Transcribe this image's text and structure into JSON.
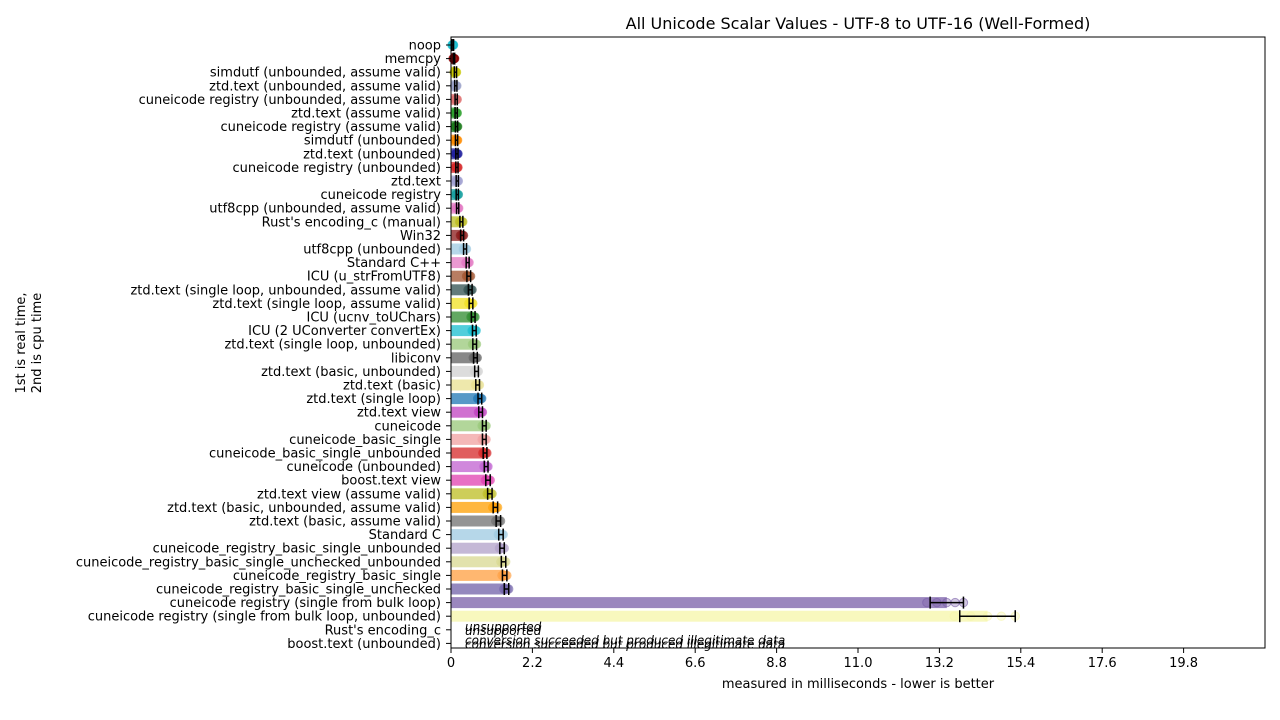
{
  "chart_data": {
    "type": "bar",
    "orientation": "horizontal",
    "title": "All Unicode Scalar Values - UTF-8 to UTF-16 (Well-Formed)",
    "xlabel": "measured in milliseconds - lower is better",
    "ylabel_line1": "1st is real time,",
    "ylabel_line2": "2nd is cpu time",
    "xlim": [
      0,
      22
    ],
    "xticks": [
      "0",
      "2.2",
      "4.4",
      "6.6",
      "8.8",
      "11.0",
      "13.2",
      "15.4",
      "17.6",
      "19.8"
    ],
    "xtick_values": [
      0,
      2.2,
      4.4,
      6.6,
      8.8,
      11.0,
      13.2,
      15.4,
      17.6,
      19.8
    ],
    "grid": false,
    "annotations": {
      "unsupported": "unsupported",
      "illegitimate": "conversion succeeded but produced illegitimate data"
    },
    "categories": [
      {
        "name": "noop",
        "value": 0.05,
        "err": 0.02,
        "color": "#17becf",
        "note": null
      },
      {
        "name": "memcpy",
        "value": 0.08,
        "err": 0.02,
        "color": "#8c0000",
        "note": null
      },
      {
        "name": "simdutf (unbounded, assume valid)",
        "value": 0.12,
        "err": 0.03,
        "color": "#c8c800",
        "note": null
      },
      {
        "name": "ztd.text (unbounded, assume valid)",
        "value": 0.13,
        "err": 0.03,
        "color": "#9aa0c8",
        "note": null
      },
      {
        "name": "cuneicode registry (unbounded, assume valid)",
        "value": 0.14,
        "err": 0.03,
        "color": "#e07070",
        "note": null
      },
      {
        "name": "ztd.text (assume valid)",
        "value": 0.14,
        "err": 0.03,
        "color": "#2ca02c",
        "note": null
      },
      {
        "name": "cuneicode registry (assume valid)",
        "value": 0.15,
        "err": 0.03,
        "color": "#1a7a1a",
        "note": null
      },
      {
        "name": "simdutf (unbounded)",
        "value": 0.15,
        "err": 0.03,
        "color": "#ff8c00",
        "note": null
      },
      {
        "name": "ztd.text (unbounded)",
        "value": 0.16,
        "err": 0.03,
        "color": "#1f1f9f",
        "note": null
      },
      {
        "name": "cuneicode registry (unbounded)",
        "value": 0.16,
        "err": 0.03,
        "color": "#d62728",
        "note": null
      },
      {
        "name": "ztd.text",
        "value": 0.17,
        "err": 0.03,
        "color": "#a0a0d0",
        "note": null
      },
      {
        "name": "cuneicode registry",
        "value": 0.17,
        "err": 0.03,
        "color": "#17a0a0",
        "note": null
      },
      {
        "name": "utf8cpp (unbounded, assume valid)",
        "value": 0.18,
        "err": 0.03,
        "color": "#e377c2",
        "note": null
      },
      {
        "name": "Rust's encoding_c (manual)",
        "value": 0.28,
        "err": 0.04,
        "color": "#bcbd22",
        "note": null
      },
      {
        "name": "Win32",
        "value": 0.3,
        "err": 0.04,
        "color": "#8b1a1a",
        "note": null
      },
      {
        "name": "utf8cpp (unbounded)",
        "value": 0.38,
        "err": 0.04,
        "color": "#9ecae1",
        "note": null
      },
      {
        "name": "Standard C++",
        "value": 0.45,
        "err": 0.04,
        "color": "#e377c2",
        "note": null
      },
      {
        "name": "ICU (u_strFromUTF8)",
        "value": 0.48,
        "err": 0.05,
        "color": "#a0522d",
        "note": null
      },
      {
        "name": "ztd.text (single loop, unbounded, assume valid)",
        "value": 0.52,
        "err": 0.05,
        "color": "#2f4f4f",
        "note": null
      },
      {
        "name": "ztd.text (single loop, assume valid)",
        "value": 0.54,
        "err": 0.05,
        "color": "#f0e020",
        "note": null
      },
      {
        "name": "ICU (ucnv_toUChars)",
        "value": 0.6,
        "err": 0.05,
        "color": "#2e8b2e",
        "note": null
      },
      {
        "name": "ICU (2 UConverter convertEx)",
        "value": 0.63,
        "err": 0.05,
        "color": "#17becf",
        "note": null
      },
      {
        "name": "ztd.text (single loop, unbounded)",
        "value": 0.64,
        "err": 0.05,
        "color": "#98c878",
        "note": null
      },
      {
        "name": "libiconv",
        "value": 0.66,
        "err": 0.05,
        "color": "#606060",
        "note": null
      },
      {
        "name": "ztd.text (basic, unbounded)",
        "value": 0.69,
        "err": 0.05,
        "color": "#d0d0d0",
        "note": null
      },
      {
        "name": "ztd.text (basic)",
        "value": 0.72,
        "err": 0.05,
        "color": "#e8e090",
        "note": null
      },
      {
        "name": "ztd.text (single loop)",
        "value": 0.78,
        "err": 0.05,
        "color": "#1f77b4",
        "note": null
      },
      {
        "name": "ztd.text view",
        "value": 0.8,
        "err": 0.05,
        "color": "#c040c0",
        "note": null
      },
      {
        "name": "cuneicode",
        "value": 0.9,
        "err": 0.05,
        "color": "#98c878",
        "note": null
      },
      {
        "name": "cuneicode_basic_single",
        "value": 0.9,
        "err": 0.05,
        "color": "#f0a0a0",
        "note": null
      },
      {
        "name": "cuneicode_basic_single_unbounded",
        "value": 0.92,
        "err": 0.05,
        "color": "#d62728",
        "note": null
      },
      {
        "name": "cuneicode (unbounded)",
        "value": 0.95,
        "err": 0.05,
        "color": "#c060d0",
        "note": null
      },
      {
        "name": "boost.text view",
        "value": 1.0,
        "err": 0.06,
        "color": "#e040b0",
        "note": null
      },
      {
        "name": "ztd.text view (assume valid)",
        "value": 1.05,
        "err": 0.06,
        "color": "#bcbd22",
        "note": null
      },
      {
        "name": "ztd.text (basic, unbounded, assume valid)",
        "value": 1.2,
        "err": 0.06,
        "color": "#ff9f00",
        "note": null
      },
      {
        "name": "ztd.text (basic, assume valid)",
        "value": 1.28,
        "err": 0.06,
        "color": "#707070",
        "note": null
      },
      {
        "name": "Standard C",
        "value": 1.35,
        "err": 0.06,
        "color": "#9ecae1",
        "note": null
      },
      {
        "name": "cuneicode_registry_basic_single_unbounded",
        "value": 1.38,
        "err": 0.06,
        "color": "#b0a0c8",
        "note": null
      },
      {
        "name": "cuneicode_registry_basic_single_unchecked_unbounded",
        "value": 1.42,
        "err": 0.06,
        "color": "#d8d890",
        "note": null
      },
      {
        "name": "cuneicode_registry_basic_single",
        "value": 1.45,
        "err": 0.06,
        "color": "#ff9f40",
        "note": null
      },
      {
        "name": "cuneicode_registry_basic_single_unchecked",
        "value": 1.5,
        "err": 0.06,
        "color": "#7060a8",
        "note": null
      },
      {
        "name": "cuneicode registry (single from bulk loop)",
        "value": 13.4,
        "err": 0.45,
        "color": "#7a5fa8",
        "note": null
      },
      {
        "name": "cuneicode registry (single from bulk loop, unbounded)",
        "value": 14.5,
        "err": 0.75,
        "color": "#f5f5a8",
        "note": null
      },
      {
        "name": "Rust's encoding_c",
        "value": 0,
        "err": 0,
        "color": "#ffffff",
        "note": "unsupported"
      },
      {
        "name": "boost.text (unbounded)",
        "value": 0,
        "err": 0,
        "color": "#ffffff",
        "note": "illegitimate"
      }
    ]
  }
}
